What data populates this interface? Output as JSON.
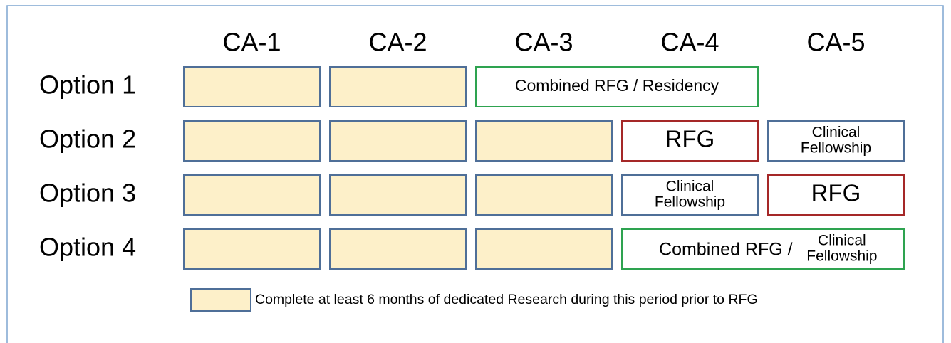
{
  "columns": [
    "CA-1",
    "CA-2",
    "CA-3",
    "CA-4",
    "CA-5"
  ],
  "rows": [
    {
      "label": "Option 1",
      "cells": [
        {
          "lines": [
            "Combined RFG / Residency"
          ]
        }
      ]
    },
    {
      "label": "Option 2",
      "cells": [
        {
          "lines": [
            "RFG"
          ]
        },
        {
          "lines": [
            "Clinical",
            "Fellowship"
          ]
        }
      ]
    },
    {
      "label": "Option 3",
      "cells": [
        {
          "lines": [
            "Clinical",
            "Fellowship"
          ]
        },
        {
          "lines": [
            "RFG"
          ]
        }
      ]
    },
    {
      "label": "Option 4",
      "cells": [
        {
          "prefix": "Combined RFG /",
          "lines": [
            "Clinical",
            "Fellowship"
          ]
        }
      ]
    }
  ],
  "legend": {
    "text": "Complete at least 6 months of dedicated Research during this period prior to RFG"
  }
}
